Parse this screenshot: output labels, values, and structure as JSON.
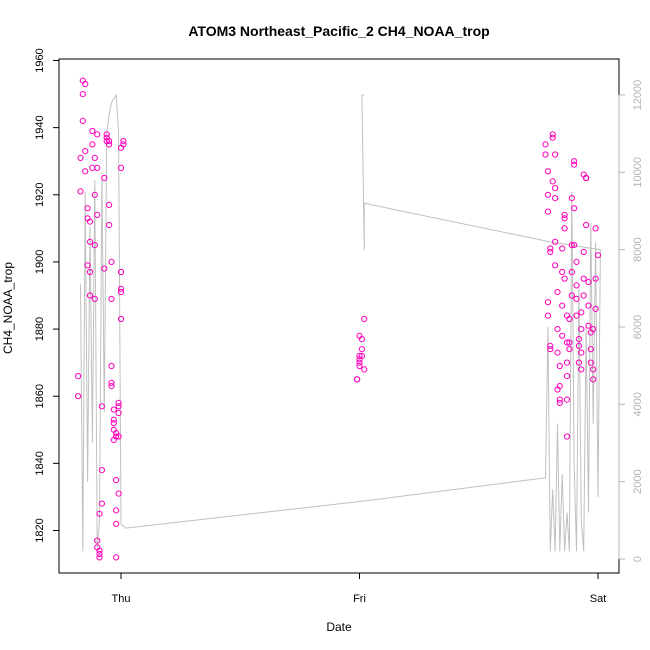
{
  "chart_data": {
    "type": "scatter",
    "title": "ATOM3 Northeast_Pacific_2 CH4_NOAA_trop",
    "xlabel": "Date",
    "ylabel": "CH4_NOAA_trop",
    "x_ticks": [
      "Thu",
      "Fri",
      "Sat"
    ],
    "y_ticks": [
      1820,
      1840,
      1860,
      1880,
      1900,
      1920,
      1940,
      1960
    ],
    "y2_ticks": [
      0,
      2000,
      4000,
      6000,
      8000,
      10000,
      12000
    ],
    "ylim": [
      1812,
      1960
    ],
    "y2lim": [
      0,
      12000
    ],
    "grid": false,
    "colors": {
      "points": "#ff00bb",
      "altitude_line": "#c0c0c0",
      "right_axis": "#b4b4b4"
    },
    "series": [
      {
        "marker": "circle",
        "points": [
          [
            -0.18,
            1866
          ],
          [
            -0.18,
            1860
          ],
          [
            -0.17,
            1921
          ],
          [
            -0.17,
            1931
          ],
          [
            -0.16,
            1942
          ],
          [
            -0.16,
            1950
          ],
          [
            -0.16,
            1954
          ],
          [
            -0.15,
            1953
          ],
          [
            -0.15,
            1933
          ],
          [
            -0.15,
            1927
          ],
          [
            -0.14,
            1916
          ],
          [
            -0.14,
            1913
          ],
          [
            -0.14,
            1899
          ],
          [
            -0.13,
            1890
          ],
          [
            -0.13,
            1897
          ],
          [
            -0.13,
            1906
          ],
          [
            -0.13,
            1912
          ],
          [
            -0.12,
            1928
          ],
          [
            -0.12,
            1939
          ],
          [
            -0.12,
            1935
          ],
          [
            -0.11,
            1931
          ],
          [
            -0.11,
            1920
          ],
          [
            -0.11,
            1905
          ],
          [
            -0.11,
            1889
          ],
          [
            -0.1,
            1914
          ],
          [
            -0.1,
            1928
          ],
          [
            -0.1,
            1938
          ],
          [
            -0.1,
            1817
          ],
          [
            -0.1,
            1815
          ],
          [
            -0.09,
            1813
          ],
          [
            -0.09,
            1812
          ],
          [
            -0.09,
            1814
          ],
          [
            -0.09,
            1825
          ],
          [
            -0.08,
            1828
          ],
          [
            -0.08,
            1838
          ],
          [
            -0.08,
            1857
          ],
          [
            -0.07,
            1898
          ],
          [
            -0.07,
            1925
          ],
          [
            -0.06,
            1936
          ],
          [
            -0.06,
            1937
          ],
          [
            -0.06,
            1938
          ],
          [
            -0.05,
            1936
          ],
          [
            -0.05,
            1935
          ],
          [
            -0.05,
            1917
          ],
          [
            -0.05,
            1911
          ],
          [
            -0.04,
            1900
          ],
          [
            -0.04,
            1889
          ],
          [
            -0.04,
            1869
          ],
          [
            -0.04,
            1864
          ],
          [
            -0.04,
            1863
          ],
          [
            -0.03,
            1853
          ],
          [
            -0.03,
            1850
          ],
          [
            -0.03,
            1847
          ],
          [
            -0.03,
            1852
          ],
          [
            -0.03,
            1856
          ],
          [
            -0.02,
            1848
          ],
          [
            -0.02,
            1849
          ],
          [
            -0.02,
            1835
          ],
          [
            -0.02,
            1826
          ],
          [
            -0.02,
            1822
          ],
          [
            -0.02,
            1812
          ],
          [
            -0.01,
            1831
          ],
          [
            -0.01,
            1858
          ],
          [
            -0.01,
            1857
          ],
          [
            -0.01,
            1855
          ],
          [
            -0.01,
            1848
          ],
          [
            0,
            1883
          ],
          [
            0,
            1891
          ],
          [
            0,
            1892
          ],
          [
            0,
            1897
          ],
          [
            0,
            1928
          ],
          [
            0,
            1934
          ],
          [
            0.01,
            1935
          ],
          [
            0.01,
            1936
          ],
          [
            0.99,
            1865
          ],
          [
            0.99,
            1865
          ],
          [
            1,
            1869
          ],
          [
            1,
            1870
          ],
          [
            1,
            1871
          ],
          [
            1,
            1872
          ],
          [
            1,
            1878
          ],
          [
            1.01,
            1872
          ],
          [
            1.01,
            1874
          ],
          [
            1.01,
            1877
          ],
          [
            1.02,
            1883
          ],
          [
            1.02,
            1868
          ],
          [
            1.78,
            1935
          ],
          [
            1.78,
            1932
          ],
          [
            1.79,
            1927
          ],
          [
            1.79,
            1920
          ],
          [
            1.79,
            1915
          ],
          [
            1.79,
            1888
          ],
          [
            1.79,
            1884
          ],
          [
            1.8,
            1875
          ],
          [
            1.8,
            1874
          ],
          [
            1.8,
            1903
          ],
          [
            1.8,
            1904
          ],
          [
            1.81,
            1924
          ],
          [
            1.81,
            1938
          ],
          [
            1.81,
            1937
          ],
          [
            1.82,
            1932
          ],
          [
            1.82,
            1922
          ],
          [
            1.82,
            1919
          ],
          [
            1.82,
            1906
          ],
          [
            1.82,
            1899
          ],
          [
            1.83,
            1891
          ],
          [
            1.83,
            1880
          ],
          [
            1.83,
            1873
          ],
          [
            1.83,
            1862
          ],
          [
            1.84,
            1859
          ],
          [
            1.84,
            1858
          ],
          [
            1.84,
            1863
          ],
          [
            1.84,
            1869
          ],
          [
            1.85,
            1878
          ],
          [
            1.85,
            1887
          ],
          [
            1.85,
            1897
          ],
          [
            1.85,
            1904
          ],
          [
            1.86,
            1914
          ],
          [
            1.86,
            1910
          ],
          [
            1.86,
            1913
          ],
          [
            1.86,
            1895
          ],
          [
            1.87,
            1884
          ],
          [
            1.87,
            1876
          ],
          [
            1.87,
            1870
          ],
          [
            1.87,
            1866
          ],
          [
            1.87,
            1848
          ],
          [
            1.87,
            1859
          ],
          [
            1.88,
            1874
          ],
          [
            1.88,
            1876
          ],
          [
            1.88,
            1883
          ],
          [
            1.89,
            1890
          ],
          [
            1.89,
            1897
          ],
          [
            1.89,
            1905
          ],
          [
            1.89,
            1919
          ],
          [
            1.9,
            1930
          ],
          [
            1.9,
            1929
          ],
          [
            1.9,
            1916
          ],
          [
            1.9,
            1905
          ],
          [
            1.91,
            1900
          ],
          [
            1.91,
            1893
          ],
          [
            1.91,
            1889
          ],
          [
            1.91,
            1884
          ],
          [
            1.92,
            1877
          ],
          [
            1.92,
            1875
          ],
          [
            1.92,
            1870
          ],
          [
            1.93,
            1868
          ],
          [
            1.93,
            1873
          ],
          [
            1.93,
            1880
          ],
          [
            1.93,
            1885
          ],
          [
            1.94,
            1890
          ],
          [
            1.94,
            1895
          ],
          [
            1.94,
            1903
          ],
          [
            1.94,
            1926
          ],
          [
            1.95,
            1925
          ],
          [
            1.95,
            1925
          ],
          [
            1.95,
            1925
          ],
          [
            1.95,
            1911
          ],
          [
            1.96,
            1894
          ],
          [
            1.96,
            1887
          ],
          [
            1.96,
            1881
          ],
          [
            1.97,
            1879
          ],
          [
            1.97,
            1874
          ],
          [
            1.97,
            1870
          ],
          [
            1.98,
            1865
          ],
          [
            1.98,
            1868
          ],
          [
            1.98,
            1880
          ],
          [
            1.99,
            1886
          ],
          [
            1.99,
            1895
          ],
          [
            1.99,
            1910
          ],
          [
            2,
            1902
          ]
        ]
      },
      {
        "name": "altitude",
        "axis": "right",
        "line": [
          [
            -0.17,
            7100
          ],
          [
            -0.16,
            200
          ],
          [
            -0.15,
            9500
          ],
          [
            -0.14,
            2000
          ],
          [
            -0.13,
            8600
          ],
          [
            -0.12,
            3000
          ],
          [
            -0.11,
            9800
          ],
          [
            -0.1,
            300
          ],
          [
            -0.09,
            1000
          ],
          [
            -0.08,
            10000
          ],
          [
            -0.07,
            3800
          ],
          [
            -0.06,
            11000
          ],
          [
            -0.05,
            11500
          ],
          [
            -0.04,
            11800
          ],
          [
            -0.03,
            11900
          ],
          [
            -0.02,
            12000
          ],
          [
            -0.01,
            11000
          ],
          [
            0,
            900
          ],
          [
            0.02,
            800
          ],
          [
            1.02,
            1500
          ],
          [
            1.78,
            2100
          ],
          [
            1.79,
            6000
          ],
          [
            1.8,
            200
          ],
          [
            1.81,
            1800
          ],
          [
            1.82,
            200
          ],
          [
            1.83,
            3500
          ],
          [
            1.84,
            200
          ],
          [
            1.85,
            2200
          ],
          [
            1.86,
            200
          ],
          [
            1.87,
            1200
          ],
          [
            1.88,
            200
          ],
          [
            1.89,
            9500
          ],
          [
            1.9,
            2500
          ],
          [
            1.91,
            200
          ],
          [
            1.92,
            7000
          ],
          [
            1.93,
            1000
          ],
          [
            1.94,
            200
          ],
          [
            1.95,
            6000
          ],
          [
            1.96,
            1200
          ],
          [
            1.97,
            8700
          ],
          [
            1.98,
            3500
          ],
          [
            1.99,
            8200
          ],
          [
            2,
            1600
          ],
          [
            2.01,
            8000
          ],
          [
            1.8,
            8200
          ],
          [
            1.02,
            9200
          ],
          [
            1.02,
            8000
          ],
          [
            1.01,
            12000
          ],
          [
            1.02,
            12000
          ]
        ]
      }
    ]
  }
}
